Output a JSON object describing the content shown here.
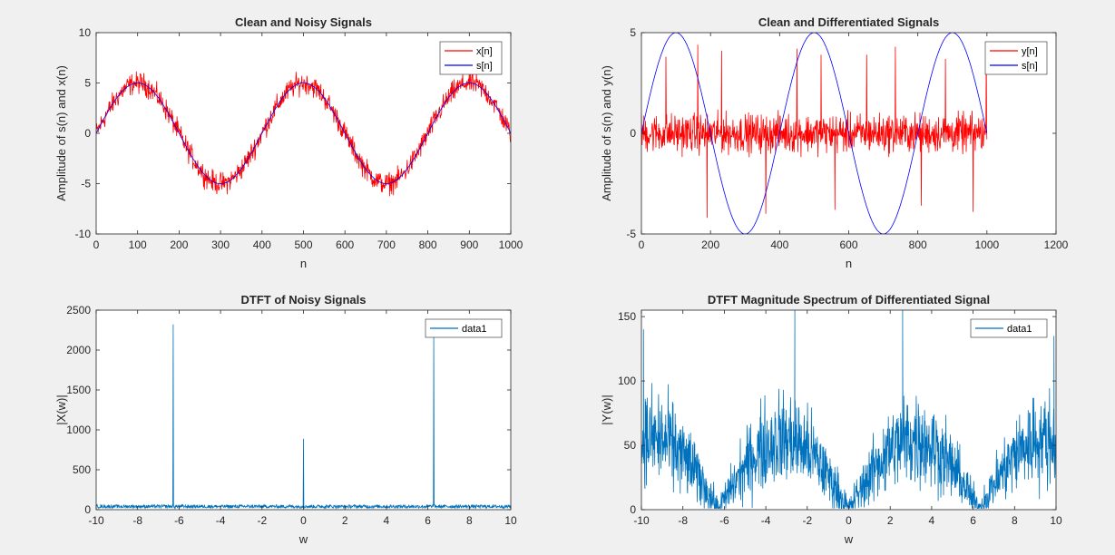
{
  "colors": {
    "figure_bg": "#f0f0f0",
    "axes_bg": "#ffffff",
    "axis": "#262626",
    "red": "#ff0000",
    "blue": "#0000ff",
    "matlab_blue": "#0072bd"
  },
  "chart_data": [
    {
      "type": "line",
      "title": "Clean and Noisy Signals",
      "xlabel": "n",
      "ylabel": "Amplitude of s(n) and x(n)",
      "xlim": [
        0,
        1000
      ],
      "ylim": [
        -10,
        10
      ],
      "xticks": [
        0,
        100,
        200,
        300,
        400,
        500,
        600,
        700,
        800,
        900,
        1000
      ],
      "yticks": [
        -10,
        -5,
        0,
        5,
        10
      ],
      "legend_position": "top-right",
      "series": [
        {
          "name": "x[n]",
          "color": "#ff0000",
          "kind": "noisy-sine",
          "n": [
            0,
            1000
          ],
          "amplitude": 5,
          "period": 400,
          "noise_amplitude": 1.6
        },
        {
          "name": "s[n]",
          "color": "#0000ff",
          "kind": "sine",
          "n": [
            0,
            1000
          ],
          "amplitude": 5,
          "period": 400
        }
      ]
    },
    {
      "type": "line",
      "title": "Clean and Differentiated Signals",
      "xlabel": "n",
      "ylabel": "Amplitude of s(n) and y(n)",
      "xlim": [
        0,
        1200
      ],
      "ylim": [
        -5,
        5
      ],
      "xticks": [
        0,
        200,
        400,
        600,
        800,
        1000,
        1200
      ],
      "yticks": [
        -5,
        0,
        5
      ],
      "legend_position": "top-right",
      "series": [
        {
          "name": "y[n]",
          "color": "#ff0000",
          "kind": "noise",
          "n": [
            0,
            1000
          ],
          "noise_amplitude": 1.4,
          "spikes": [
            [
              71,
              3.8
            ],
            [
              163,
              4.4
            ],
            [
              190,
              -4.2
            ],
            [
              232,
              4.1
            ],
            [
              360,
              -4.0
            ],
            [
              450,
              4.2
            ],
            [
              520,
              3.9
            ],
            [
              560,
              -3.8
            ],
            [
              652,
              3.9
            ],
            [
              735,
              4.3
            ],
            [
              810,
              -3.6
            ],
            [
              880,
              3.7
            ],
            [
              960,
              -3.9
            ],
            [
              998,
              4.3
            ]
          ]
        },
        {
          "name": "s[n]",
          "color": "#0000ff",
          "kind": "sine",
          "n": [
            0,
            1000
          ],
          "amplitude": 5,
          "period": 400
        }
      ]
    },
    {
      "type": "line",
      "title": "DTFT of Noisy Signals",
      "xlabel": "w",
      "ylabel": "|X(w)|",
      "xlim": [
        -10,
        10
      ],
      "ylim": [
        0,
        2500
      ],
      "xticks": [
        -10,
        -8,
        -6,
        -4,
        -2,
        0,
        2,
        4,
        6,
        8,
        10
      ],
      "yticks": [
        0,
        500,
        1000,
        1500,
        2000,
        2500
      ],
      "legend_position": "top-right",
      "series": [
        {
          "name": "data1",
          "color": "#0072bd",
          "kind": "peaks",
          "w": [
            -10,
            10
          ],
          "baseline": 40,
          "baseline_noise": 35,
          "peaks": [
            [
              -6.28,
              2320
            ],
            [
              0,
              890
            ],
            [
              6.28,
              2180
            ]
          ]
        }
      ]
    },
    {
      "type": "line",
      "title": "DTFT Magnitude Spectrum of Differentiated Signal",
      "xlabel": "w",
      "ylabel": "|Y(w)|",
      "xlim": [
        -10,
        10
      ],
      "ylim": [
        0,
        155
      ],
      "xticks": [
        -10,
        -8,
        -6,
        -4,
        -2,
        0,
        2,
        4,
        6,
        8,
        10
      ],
      "yticks": [
        0,
        50,
        100,
        150
      ],
      "legend_position": "top-right",
      "series": [
        {
          "name": "data1",
          "color": "#0072bd",
          "kind": "sine-envelope",
          "w": [
            -10,
            10
          ],
          "envelope_peak": 55,
          "noise_amplitude": 40,
          "spikes": [
            [
              -2.6,
              155
            ],
            [
              2.6,
              155
            ],
            [
              -9.9,
              140
            ],
            [
              9.9,
              135
            ]
          ]
        }
      ]
    }
  ]
}
